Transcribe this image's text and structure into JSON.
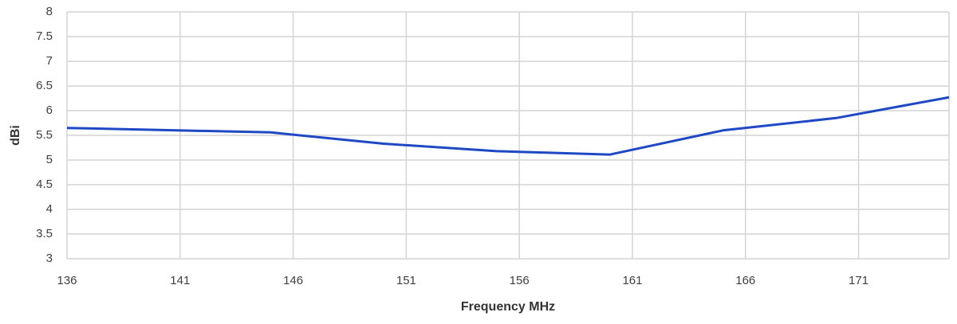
{
  "chart_data": {
    "type": "line",
    "x_label": "Frequency MHz",
    "y_label": "dBi",
    "x": [
      136,
      145,
      150,
      155,
      160,
      165,
      170,
      175
    ],
    "series": [
      {
        "color": "#1f48c4",
        "values": [
          5.65,
          5.56,
          5.33,
          5.18,
          5.11,
          5.6,
          5.85,
          6.27
        ]
      }
    ],
    "xlim": [
      136,
      175
    ],
    "xticks": [
      136,
      141,
      146,
      151,
      156,
      161,
      166,
      171
    ],
    "ylim": [
      3,
      8
    ],
    "yticks": [
      3,
      3.5,
      4,
      4.5,
      5,
      5.5,
      6,
      6.5,
      7,
      7.5,
      8
    ],
    "grid": true
  }
}
